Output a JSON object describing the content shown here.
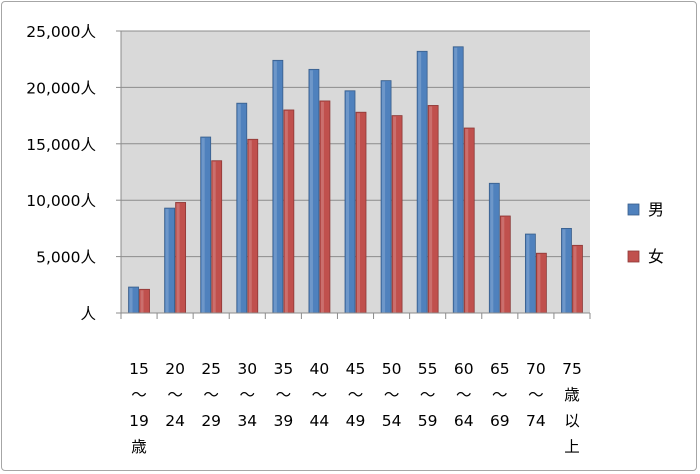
{
  "chart_data": {
    "type": "bar",
    "title": "",
    "xlabel": "",
    "ylabel": "",
    "ylim": [
      0,
      25000
    ],
    "grid": true,
    "legend_position": "right",
    "unit": "人",
    "y_ticks": [
      "人",
      "5,000人",
      "10,000人",
      "15,000人",
      "20,000人",
      "25,000人"
    ],
    "categories": [
      [
        "15",
        "～",
        "19",
        "歳"
      ],
      [
        "20",
        "～",
        "24"
      ],
      [
        "25",
        "～",
        "29"
      ],
      [
        "30",
        "～",
        "34"
      ],
      [
        "35",
        "～",
        "39"
      ],
      [
        "40",
        "～",
        "44"
      ],
      [
        "45",
        "～",
        "49"
      ],
      [
        "50",
        "～",
        "54"
      ],
      [
        "55",
        "～",
        "59"
      ],
      [
        "60",
        "～",
        "64"
      ],
      [
        "65",
        "～",
        "69"
      ],
      [
        "70",
        "～",
        "74"
      ],
      [
        "75",
        "歳",
        "以",
        "上"
      ]
    ],
    "series": [
      {
        "name": "男",
        "color": "#4f81bd",
        "values": [
          2300,
          9300,
          15600,
          18600,
          22400,
          21600,
          19700,
          20600,
          23200,
          23600,
          11500,
          7000,
          7500
        ]
      },
      {
        "name": "女",
        "color": "#c0504d",
        "values": [
          2100,
          9800,
          13500,
          15400,
          18000,
          18800,
          17800,
          17500,
          18400,
          16400,
          8600,
          5300,
          6000
        ]
      }
    ]
  }
}
